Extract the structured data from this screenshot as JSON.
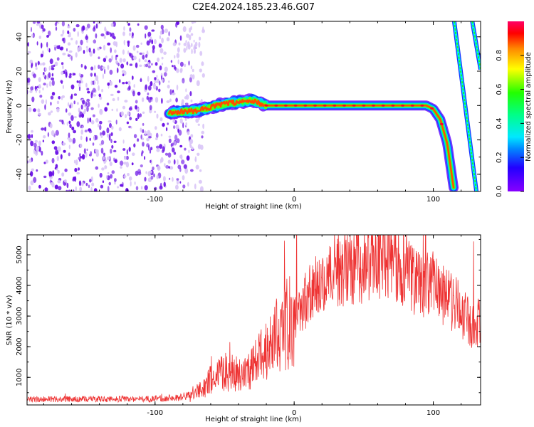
{
  "title": "C2E4.2024.185.23.46.G07",
  "colors": {
    "snr_line": "#ee3333",
    "speckle": "#6a10e6",
    "speckle_faint": "#d9c5f7"
  },
  "chart_data": [
    {
      "id": "spectrogram",
      "type": "heatmap",
      "xlabel": "Height of straight line (km)",
      "ylabel": "Frequency (Hz)",
      "xlim": [
        -192,
        134
      ],
      "ylim": [
        -50,
        49
      ],
      "xticks": [
        -100,
        0,
        100
      ],
      "xtick_labels": [
        "-100",
        "0",
        "100"
      ],
      "yticks": [
        -40,
        -20,
        0,
        20,
        40
      ],
      "ytick_labels": [
        "-40",
        "-20",
        "0",
        "20",
        "40"
      ],
      "colorbar": {
        "label": "Normalized spectral amplitude",
        "range": [
          0,
          1
        ],
        "ticks": [
          0.0,
          0.2,
          0.4,
          0.6,
          0.8
        ],
        "tick_labels": [
          "0.0",
          "0.2",
          "0.4",
          "0.6",
          "0.8"
        ],
        "colormap": "rainbow"
      },
      "noise_region": {
        "x": [
          -192,
          -75
        ],
        "amplitude": "low"
      },
      "main_track": [
        {
          "x": -90,
          "y": -4
        },
        {
          "x": -70,
          "y": -3
        },
        {
          "x": -50,
          "y": 1
        },
        {
          "x": -30,
          "y": 3
        },
        {
          "x": -20,
          "y": 0
        },
        {
          "x": 0,
          "y": 0
        },
        {
          "x": 50,
          "y": 0
        },
        {
          "x": 95,
          "y": 0
        },
        {
          "x": 100,
          "y": -2
        },
        {
          "x": 105,
          "y": -8
        },
        {
          "x": 110,
          "y": -22
        },
        {
          "x": 115,
          "y": -50
        }
      ],
      "aliased_tracks": [
        {
          "points": [
            {
              "x": 115,
              "y": 49
            },
            {
              "x": 131,
              "y": -50
            }
          ]
        },
        {
          "points": [
            {
              "x": 128,
              "y": 49
            },
            {
              "x": 134,
              "y": 21
            }
          ]
        }
      ]
    },
    {
      "id": "snr",
      "type": "line",
      "xlabel": "Height of straight line (km)",
      "ylabel": "SNR (10 * v/v)",
      "xlim": [
        -192,
        134
      ],
      "ylim": [
        100,
        5650
      ],
      "xticks": [
        -100,
        0,
        100
      ],
      "xtick_labels": [
        "-100",
        "0",
        "100"
      ],
      "yticks": [
        1000,
        2000,
        3000,
        4000,
        5000
      ],
      "ytick_labels": [
        "1000",
        "2000",
        "3000",
        "4000",
        "5000"
      ],
      "series": [
        {
          "values_envelope": [
            {
              "x": -192,
              "y": 280
            },
            {
              "x": -150,
              "y": 290
            },
            {
              "x": -100,
              "y": 300
            },
            {
              "x": -80,
              "y": 350
            },
            {
              "x": -70,
              "y": 500
            },
            {
              "x": -60,
              "y": 900
            },
            {
              "x": -50,
              "y": 1200
            },
            {
              "x": -40,
              "y": 1100
            },
            {
              "x": -30,
              "y": 1300
            },
            {
              "x": -20,
              "y": 2000
            },
            {
              "x": -10,
              "y": 2500
            },
            {
              "x": 0,
              "y": 3000
            },
            {
              "x": 10,
              "y": 3600
            },
            {
              "x": 20,
              "y": 4200
            },
            {
              "x": 30,
              "y": 4500
            },
            {
              "x": 45,
              "y": 4700
            },
            {
              "x": 60,
              "y": 4750
            },
            {
              "x": 70,
              "y": 4850
            },
            {
              "x": 80,
              "y": 4500
            },
            {
              "x": 90,
              "y": 4000
            },
            {
              "x": 100,
              "y": 4000
            },
            {
              "x": 110,
              "y": 3600
            },
            {
              "x": 120,
              "y": 3200
            },
            {
              "x": 128,
              "y": 2600
            },
            {
              "x": 134,
              "y": 2900
            }
          ]
        }
      ]
    }
  ]
}
